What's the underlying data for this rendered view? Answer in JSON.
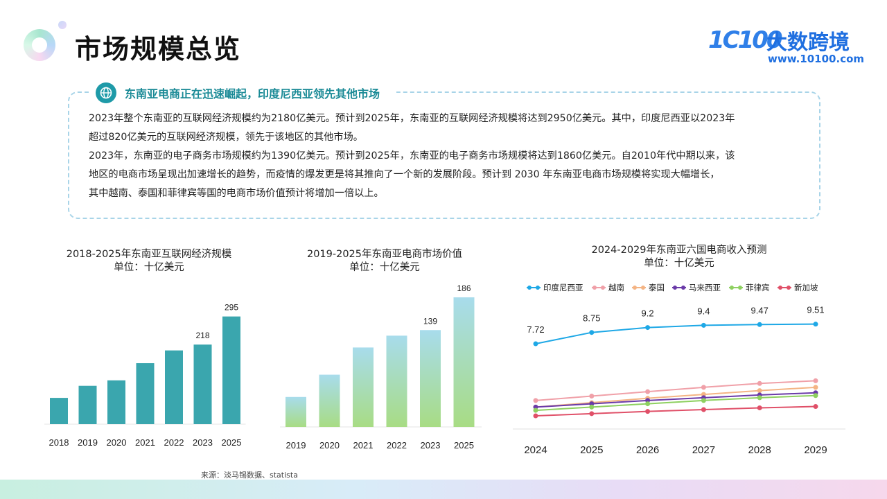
{
  "header": {
    "title": "市场规模总览",
    "brand_mark": "1C100",
    "brand_name": "大数跨境",
    "brand_url": "www.10100.com"
  },
  "summary": {
    "heading": "东南亚电商正在迅速崛起，印度尼西亚领先其他市场",
    "lines": [
      "2023年整个东南亚的互联网经济规模约为2180亿美元。预计到2025年，东南亚的互联网经济规模将达到2950亿美元。其中，印度尼西亚以2023年",
      "超过820亿美元的互联网经济规模，领先于该地区的其他市场。",
      "2023年，东南亚的电子商务市场规模约为1390亿美元。预计到2025年，东南亚的电子商务市场规模将达到1860亿美元。自2010年代中期以来，该",
      "地区的电商市场呈现出加速增长的趋势，而疫情的爆发更是将其推向了一个新的发展阶段。预计到 2030 年东南亚电商市场规模将实现大幅增长，",
      "其中越南、泰国和菲律宾等国的电商市场价值预计将增加一倍以上。"
    ]
  },
  "chart_data": [
    {
      "type": "bar",
      "title": "2018-2025年东南亚互联网经济规模",
      "subtitle": "单位：十亿美元",
      "categories": [
        "2018",
        "2019",
        "2020",
        "2021",
        "2022",
        "2023",
        "2025"
      ],
      "values": [
        72,
        105,
        120,
        167,
        202,
        218,
        295
      ],
      "value_labels": [
        "",
        "",
        "",
        "",
        "",
        "218",
        "295"
      ],
      "ylim": [
        0,
        300
      ],
      "color": "#3aa6ae"
    },
    {
      "type": "bar",
      "title": "2019-2025年东南亚电商市场价值",
      "subtitle": "单位：十亿美元",
      "categories": [
        "2019",
        "2020",
        "2021",
        "2022",
        "2023",
        "2025"
      ],
      "values": [
        43,
        75,
        114,
        131,
        139,
        186
      ],
      "value_labels": [
        "",
        "",
        "",
        "",
        "139",
        "186"
      ],
      "ylim": [
        0,
        190
      ],
      "gradient": [
        "#a8dcec",
        "#a8dc84"
      ]
    },
    {
      "type": "line",
      "title": "2024-2029年东南亚六国电商收入预测",
      "subtitle": "单位：十亿美元",
      "categories": [
        "2024",
        "2025",
        "2026",
        "2027",
        "2028",
        "2029"
      ],
      "series": [
        {
          "name": "印度尼西亚",
          "color": "#1ea8e6",
          "values": [
            7.72,
            8.75,
            9.2,
            9.4,
            9.47,
            9.51
          ],
          "labels": [
            "7.72",
            "8.75",
            "9.2",
            "9.4",
            "9.47",
            "9.51"
          ]
        },
        {
          "name": "越南",
          "color": "#f0a0a8",
          "values": [
            2.55,
            2.95,
            3.35,
            3.75,
            4.1,
            4.35
          ]
        },
        {
          "name": "泰国",
          "color": "#f4b484",
          "values": [
            1.95,
            2.35,
            2.75,
            3.1,
            3.45,
            3.75
          ]
        },
        {
          "name": "马来西亚",
          "color": "#6a3aa8",
          "values": [
            1.95,
            2.25,
            2.55,
            2.8,
            3.05,
            3.25
          ]
        },
        {
          "name": "菲律宾",
          "color": "#8ed060",
          "values": [
            1.65,
            1.95,
            2.25,
            2.55,
            2.8,
            3.0
          ]
        },
        {
          "name": "新加坡",
          "color": "#e05068",
          "values": [
            1.15,
            1.35,
            1.55,
            1.72,
            1.88,
            2.0
          ]
        }
      ],
      "legend_position": "top",
      "ylim": [
        0,
        11
      ]
    }
  ],
  "source": "来源：淡马锡数据、statista"
}
